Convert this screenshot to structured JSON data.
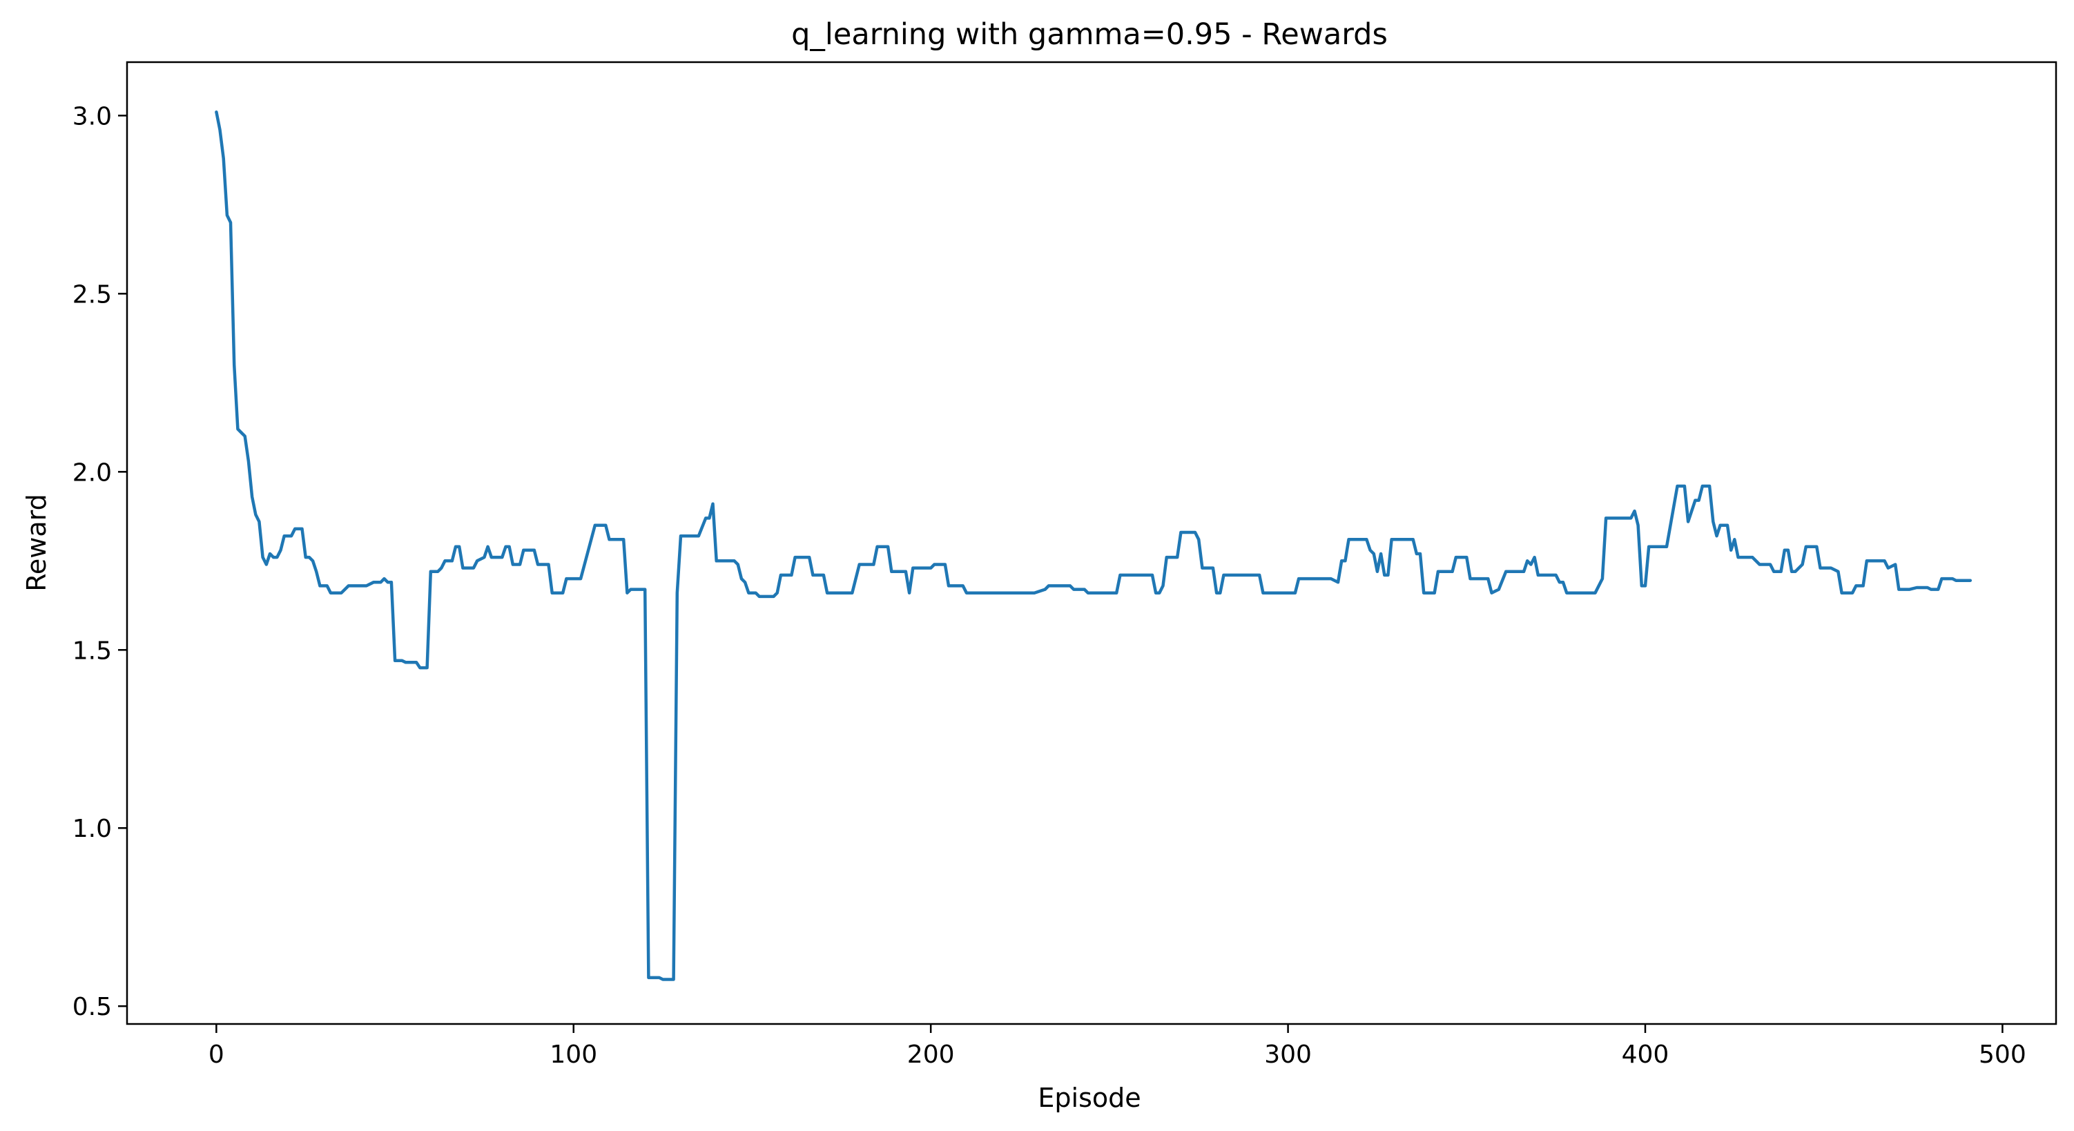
{
  "chart_data": {
    "type": "line",
    "title": "q_learning with gamma=0.95 - Rewards",
    "xlabel": "Episode",
    "ylabel": "Reward",
    "xlim": [
      -25,
      515
    ],
    "ylim": [
      0.45,
      3.15
    ],
    "xticks": [
      0,
      100,
      200,
      300,
      400,
      500
    ],
    "yticks": [
      0.5,
      1.0,
      1.5,
      2.0,
      2.5,
      3.0
    ],
    "xtick_labels": [
      "0",
      "100",
      "200",
      "300",
      "400",
      "500"
    ],
    "ytick_labels": [
      "0.5",
      "1.0",
      "1.5",
      "2.0",
      "2.5",
      "3.0"
    ],
    "grid": false,
    "legend": "none",
    "series": [
      {
        "color": "#1f77b4",
        "points": [
          [
            0,
            3.01
          ],
          [
            1,
            2.96
          ],
          [
            2,
            2.88
          ],
          [
            3,
            2.72
          ],
          [
            4,
            2.7
          ],
          [
            5,
            2.3
          ],
          [
            6,
            2.12
          ],
          [
            7,
            2.11
          ],
          [
            8,
            2.1
          ],
          [
            9,
            2.03
          ],
          [
            10,
            1.93
          ],
          [
            11,
            1.88
          ],
          [
            12,
            1.86
          ],
          [
            13,
            1.76
          ],
          [
            14,
            1.74
          ],
          [
            15,
            1.77
          ],
          [
            16,
            1.76
          ],
          [
            17,
            1.76
          ],
          [
            18,
            1.78
          ],
          [
            19,
            1.82
          ],
          [
            20,
            1.82
          ],
          [
            21,
            1.82
          ],
          [
            22,
            1.84
          ],
          [
            23,
            1.84
          ],
          [
            24,
            1.84
          ],
          [
            25,
            1.76
          ],
          [
            26,
            1.76
          ],
          [
            27,
            1.75
          ],
          [
            28,
            1.72
          ],
          [
            29,
            1.68
          ],
          [
            30,
            1.68
          ],
          [
            31,
            1.68
          ],
          [
            32,
            1.66
          ],
          [
            35,
            1.66
          ],
          [
            37,
            1.68
          ],
          [
            42,
            1.68
          ],
          [
            44,
            1.69
          ],
          [
            46,
            1.69
          ],
          [
            47,
            1.7
          ],
          [
            48,
            1.69
          ],
          [
            49,
            1.69
          ],
          [
            50,
            1.47
          ],
          [
            52,
            1.47
          ],
          [
            53,
            1.465
          ],
          [
            56,
            1.465
          ],
          [
            57,
            1.45
          ],
          [
            59,
            1.45
          ],
          [
            60,
            1.72
          ],
          [
            62,
            1.72
          ],
          [
            63,
            1.73
          ],
          [
            64,
            1.75
          ],
          [
            66,
            1.75
          ],
          [
            67,
            1.79
          ],
          [
            68,
            1.79
          ],
          [
            69,
            1.73
          ],
          [
            72,
            1.73
          ],
          [
            73,
            1.75
          ],
          [
            75,
            1.76
          ],
          [
            76,
            1.79
          ],
          [
            77,
            1.76
          ],
          [
            80,
            1.76
          ],
          [
            81,
            1.79
          ],
          [
            82,
            1.79
          ],
          [
            83,
            1.74
          ],
          [
            85,
            1.74
          ],
          [
            86,
            1.78
          ],
          [
            89,
            1.78
          ],
          [
            90,
            1.74
          ],
          [
            93,
            1.74
          ],
          [
            94,
            1.66
          ],
          [
            97,
            1.66
          ],
          [
            98,
            1.7
          ],
          [
            102,
            1.7
          ],
          [
            106,
            1.85
          ],
          [
            109,
            1.85
          ],
          [
            110,
            1.81
          ],
          [
            114,
            1.81
          ],
          [
            115,
            1.66
          ],
          [
            116,
            1.67
          ],
          [
            120,
            1.67
          ],
          [
            121,
            0.58
          ],
          [
            124,
            0.58
          ],
          [
            125,
            0.575
          ],
          [
            128,
            0.575
          ],
          [
            129,
            1.66
          ],
          [
            130,
            1.82
          ],
          [
            135,
            1.82
          ],
          [
            137,
            1.87
          ],
          [
            138,
            1.87
          ],
          [
            139,
            1.91
          ],
          [
            140,
            1.75
          ],
          [
            141,
            1.75
          ],
          [
            145,
            1.75
          ],
          [
            146,
            1.74
          ],
          [
            147,
            1.7
          ],
          [
            148,
            1.69
          ],
          [
            149,
            1.66
          ],
          [
            151,
            1.66
          ],
          [
            152,
            1.65
          ],
          [
            156,
            1.65
          ],
          [
            157,
            1.66
          ],
          [
            158,
            1.71
          ],
          [
            161,
            1.71
          ],
          [
            162,
            1.76
          ],
          [
            166,
            1.76
          ],
          [
            167,
            1.71
          ],
          [
            170,
            1.71
          ],
          [
            171,
            1.66
          ],
          [
            178,
            1.66
          ],
          [
            180,
            1.74
          ],
          [
            184,
            1.74
          ],
          [
            185,
            1.79
          ],
          [
            188,
            1.79
          ],
          [
            189,
            1.72
          ],
          [
            193,
            1.72
          ],
          [
            194,
            1.66
          ],
          [
            195,
            1.73
          ],
          [
            200,
            1.73
          ],
          [
            201,
            1.74
          ],
          [
            204,
            1.74
          ],
          [
            205,
            1.68
          ],
          [
            209,
            1.68
          ],
          [
            210,
            1.66
          ],
          [
            229,
            1.66
          ],
          [
            232,
            1.67
          ],
          [
            233,
            1.68
          ],
          [
            239,
            1.68
          ],
          [
            240,
            1.67
          ],
          [
            243,
            1.67
          ],
          [
            244,
            1.66
          ],
          [
            252,
            1.66
          ],
          [
            253,
            1.71
          ],
          [
            262,
            1.71
          ],
          [
            263,
            1.66
          ],
          [
            264,
            1.66
          ],
          [
            265,
            1.68
          ],
          [
            266,
            1.76
          ],
          [
            269,
            1.76
          ],
          [
            270,
            1.83
          ],
          [
            274,
            1.83
          ],
          [
            275,
            1.81
          ],
          [
            276,
            1.73
          ],
          [
            279,
            1.73
          ],
          [
            280,
            1.66
          ],
          [
            281,
            1.66
          ],
          [
            282,
            1.71
          ],
          [
            292,
            1.71
          ],
          [
            293,
            1.66
          ],
          [
            302,
            1.66
          ],
          [
            303,
            1.7
          ],
          [
            312,
            1.7
          ],
          [
            314,
            1.69
          ],
          [
            315,
            1.75
          ],
          [
            316,
            1.75
          ],
          [
            317,
            1.81
          ],
          [
            322,
            1.81
          ],
          [
            323,
            1.78
          ],
          [
            324,
            1.77
          ],
          [
            325,
            1.72
          ],
          [
            326,
            1.77
          ],
          [
            327,
            1.71
          ],
          [
            328,
            1.71
          ],
          [
            329,
            1.81
          ],
          [
            335,
            1.81
          ],
          [
            336,
            1.77
          ],
          [
            337,
            1.77
          ],
          [
            338,
            1.66
          ],
          [
            341,
            1.66
          ],
          [
            342,
            1.72
          ],
          [
            346,
            1.72
          ],
          [
            347,
            1.76
          ],
          [
            350,
            1.76
          ],
          [
            351,
            1.7
          ],
          [
            356,
            1.7
          ],
          [
            357,
            1.66
          ],
          [
            359,
            1.67
          ],
          [
            361,
            1.72
          ],
          [
            366,
            1.72
          ],
          [
            367,
            1.75
          ],
          [
            368,
            1.74
          ],
          [
            369,
            1.76
          ],
          [
            370,
            1.71
          ],
          [
            375,
            1.71
          ],
          [
            376,
            1.69
          ],
          [
            377,
            1.69
          ],
          [
            378,
            1.66
          ],
          [
            386,
            1.66
          ],
          [
            388,
            1.7
          ],
          [
            389,
            1.87
          ],
          [
            396,
            1.87
          ],
          [
            397,
            1.89
          ],
          [
            398,
            1.85
          ],
          [
            399,
            1.68
          ],
          [
            400,
            1.68
          ],
          [
            401,
            1.79
          ],
          [
            406,
            1.79
          ],
          [
            409,
            1.96
          ],
          [
            411,
            1.96
          ],
          [
            412,
            1.86
          ],
          [
            414,
            1.92
          ],
          [
            415,
            1.92
          ],
          [
            416,
            1.96
          ],
          [
            418,
            1.96
          ],
          [
            419,
            1.86
          ],
          [
            420,
            1.82
          ],
          [
            421,
            1.85
          ],
          [
            423,
            1.85
          ],
          [
            424,
            1.78
          ],
          [
            425,
            1.81
          ],
          [
            426,
            1.76
          ],
          [
            430,
            1.76
          ],
          [
            432,
            1.74
          ],
          [
            435,
            1.74
          ],
          [
            436,
            1.72
          ],
          [
            438,
            1.72
          ],
          [
            439,
            1.78
          ],
          [
            440,
            1.78
          ],
          [
            441,
            1.72
          ],
          [
            442,
            1.72
          ],
          [
            444,
            1.74
          ],
          [
            445,
            1.79
          ],
          [
            448,
            1.79
          ],
          [
            449,
            1.73
          ],
          [
            452,
            1.73
          ],
          [
            454,
            1.72
          ],
          [
            455,
            1.66
          ],
          [
            458,
            1.66
          ],
          [
            459,
            1.68
          ],
          [
            461,
            1.68
          ],
          [
            462,
            1.75
          ],
          [
            467,
            1.75
          ],
          [
            468,
            1.73
          ],
          [
            470,
            1.74
          ],
          [
            471,
            1.67
          ],
          [
            474,
            1.67
          ],
          [
            476,
            1.675
          ],
          [
            479,
            1.675
          ],
          [
            480,
            1.67
          ],
          [
            482,
            1.67
          ],
          [
            483,
            1.7
          ],
          [
            486,
            1.7
          ],
          [
            487,
            1.695
          ],
          [
            491,
            1.695
          ]
        ]
      }
    ]
  }
}
